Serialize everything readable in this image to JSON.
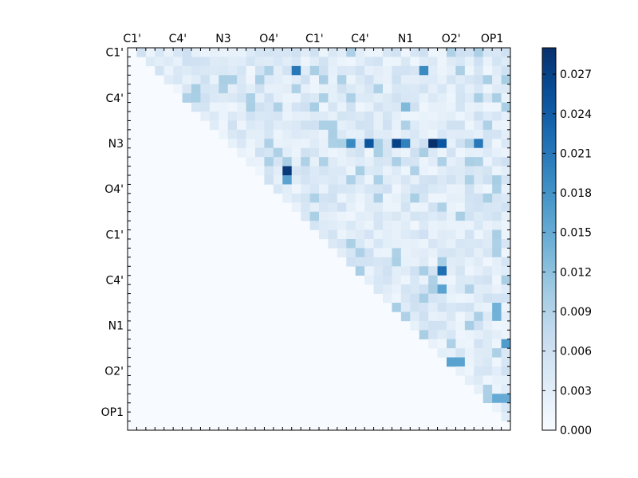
{
  "chart_data": {
    "type": "heatmap",
    "title": "",
    "xlabel": "",
    "ylabel": "",
    "size": 42,
    "triangle": "upper",
    "axis_labels": [
      "C1'",
      "C4'",
      "N3",
      "O4'",
      "C1'",
      "C4'",
      "N1",
      "O2'",
      "OP1"
    ],
    "axis_label_positions": [
      0,
      5,
      10,
      15,
      20,
      25,
      30,
      35,
      39.5
    ],
    "colormap": "Blues",
    "vmin": 0.0,
    "vmax": 0.029,
    "colorbar_ticks": [
      "0.000",
      "0.003",
      "0.006",
      "0.009",
      "0.012",
      "0.015",
      "0.018",
      "0.021",
      "0.024",
      "0.027"
    ],
    "colorbar_tick_values": [
      0.0,
      0.003,
      0.006,
      0.009,
      0.012,
      0.015,
      0.018,
      0.021,
      0.024,
      0.027
    ],
    "notable_cells": [
      {
        "row": 2,
        "col": 18,
        "value": 0.021
      },
      {
        "row": 2,
        "col": 32,
        "value": 0.019
      },
      {
        "row": 10,
        "col": 26,
        "value": 0.025
      },
      {
        "row": 10,
        "col": 29,
        "value": 0.027
      },
      {
        "row": 10,
        "col": 33,
        "value": 0.029
      },
      {
        "row": 10,
        "col": 34,
        "value": 0.025
      },
      {
        "row": 10,
        "col": 38,
        "value": 0.021
      },
      {
        "row": 10,
        "col": 24,
        "value": 0.019
      },
      {
        "row": 10,
        "col": 30,
        "value": 0.02
      },
      {
        "row": 13,
        "col": 17,
        "value": 0.028
      },
      {
        "row": 14,
        "col": 17,
        "value": 0.016
      },
      {
        "row": 6,
        "col": 30,
        "value": 0.013
      },
      {
        "row": 24,
        "col": 34,
        "value": 0.022
      },
      {
        "row": 26,
        "col": 34,
        "value": 0.016
      },
      {
        "row": 34,
        "col": 35,
        "value": 0.016
      },
      {
        "row": 34,
        "col": 36,
        "value": 0.016
      },
      {
        "row": 32,
        "col": 41,
        "value": 0.017
      },
      {
        "row": 38,
        "col": 40,
        "value": 0.015
      },
      {
        "row": 38,
        "col": 41,
        "value": 0.015
      },
      {
        "row": 28,
        "col": 40,
        "value": 0.014
      },
      {
        "row": 29,
        "col": 40,
        "value": 0.014
      }
    ],
    "background_level": 0.004
  }
}
